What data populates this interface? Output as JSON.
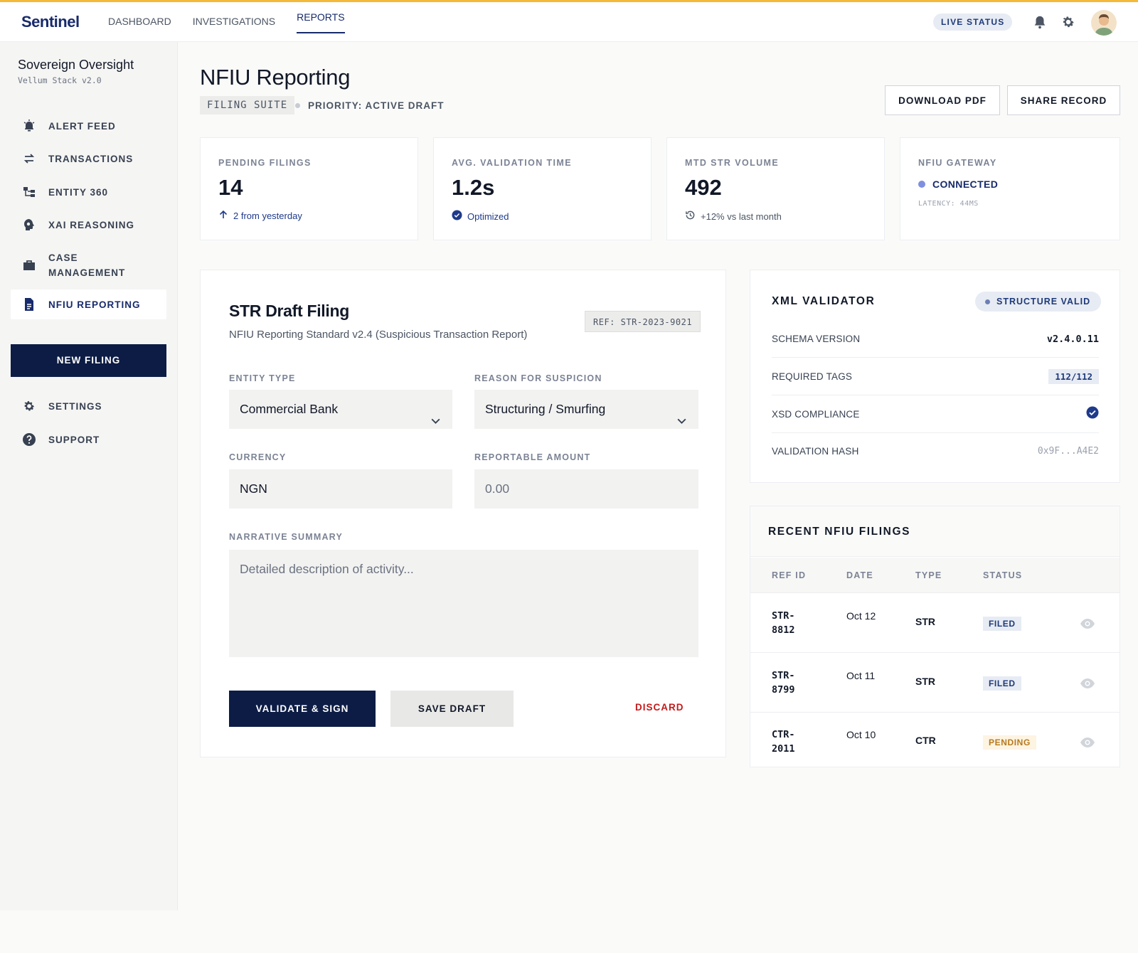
{
  "topbar": {
    "brand": "Sentinel",
    "nav": [
      {
        "label": "DASHBOARD",
        "active": false
      },
      {
        "label": "INVESTIGATIONS",
        "active": false
      },
      {
        "label": "REPORTS",
        "active": true
      }
    ],
    "live_status": "LIVE STATUS",
    "icons": [
      "bell-icon",
      "gear-icon",
      "avatar"
    ]
  },
  "sidebar": {
    "org_name": "Sovereign Oversight",
    "org_sub": "Vellum Stack v2.0",
    "items": [
      {
        "label": "ALERT FEED",
        "icon": "alarm-icon"
      },
      {
        "label": "TRANSACTIONS",
        "icon": "swap-icon"
      },
      {
        "label": "ENTITY 360",
        "icon": "hierarchy-icon"
      },
      {
        "label": "XAI REASONING",
        "icon": "brain-icon"
      },
      {
        "label": "CASE MANAGEMENT",
        "icon": "briefcase-icon"
      },
      {
        "label": "NFIU REPORTING",
        "icon": "document-icon",
        "active": true
      }
    ],
    "new_filing": "NEW FILING",
    "footer_items": [
      {
        "label": "SETTINGS",
        "icon": "gear-icon"
      },
      {
        "label": "SUPPORT",
        "icon": "help-icon"
      }
    ]
  },
  "header": {
    "title": "NFIU Reporting",
    "suite_chip": "FILING SUITE",
    "priority": "PRIORITY: ACTIVE DRAFT",
    "download_pdf": "DOWNLOAD PDF",
    "share_record": "SHARE RECORD"
  },
  "stats": [
    {
      "label": "PENDING FILINGS",
      "value": "14",
      "note": "2 from yesterday",
      "note_icon": "arrow-up-icon"
    },
    {
      "label": "AVG. VALIDATION TIME",
      "value": "1.2s",
      "note": "Optimized",
      "note_icon": "check-circle-icon"
    },
    {
      "label": "MTD STR VOLUME",
      "value": "492",
      "note": "+12% vs last month",
      "note_icon": "history-icon"
    },
    {
      "label": "NFIU GATEWAY",
      "status": "CONNECTED",
      "latency": "LATENCY: 44MS"
    }
  ],
  "form": {
    "title": "STR Draft Filing",
    "subtitle": "NFIU Reporting Standard v2.4 (Suspicious Transaction Report)",
    "ref": "REF: STR-2023-9021",
    "entity_type_label": "ENTITY TYPE",
    "entity_type_value": "Commercial Bank",
    "reason_label": "REASON FOR SUSPICION",
    "reason_value": "Structuring / Smurfing",
    "currency_label": "CURRENCY",
    "currency_value": "NGN",
    "amount_label": "REPORTABLE AMOUNT",
    "amount_placeholder": "0.00",
    "narrative_label": "NARRATIVE SUMMARY",
    "narrative_placeholder": "Detailed description of activity...",
    "validate_sign": "VALIDATE & SIGN",
    "save_draft": "SAVE DRAFT",
    "discard": "DISCARD"
  },
  "xml_validator": {
    "title": "XML VALIDATOR",
    "badge": "STRUCTURE VALID",
    "rows": [
      {
        "key": "SCHEMA VERSION",
        "value": "v2.4.0.11"
      },
      {
        "key": "REQUIRED TAGS",
        "value": "112/112"
      },
      {
        "key": "XSD COMPLIANCE",
        "value_icon": "check-circle-icon"
      },
      {
        "key": "VALIDATION HASH",
        "value": "0x9F...A4E2"
      }
    ]
  },
  "recent_filings": {
    "title": "RECENT NFIU FILINGS",
    "columns": [
      "REF ID",
      "DATE",
      "TYPE",
      "STATUS"
    ],
    "rows": [
      {
        "ref": "STR-8812",
        "date": "Oct 12",
        "type": "STR",
        "status": "FILED"
      },
      {
        "ref": "STR-8799",
        "date": "Oct 11",
        "type": "STR",
        "status": "FILED"
      },
      {
        "ref": "CTR-2011",
        "date": "Oct 10",
        "type": "CTR",
        "status": "PENDING"
      }
    ]
  },
  "colors": {
    "brand_navy": "#0c1c45",
    "accent_blue": "#172a6b",
    "top_accent": "#f5b93a",
    "danger": "#c51a1a",
    "pending": "#b7791f"
  }
}
